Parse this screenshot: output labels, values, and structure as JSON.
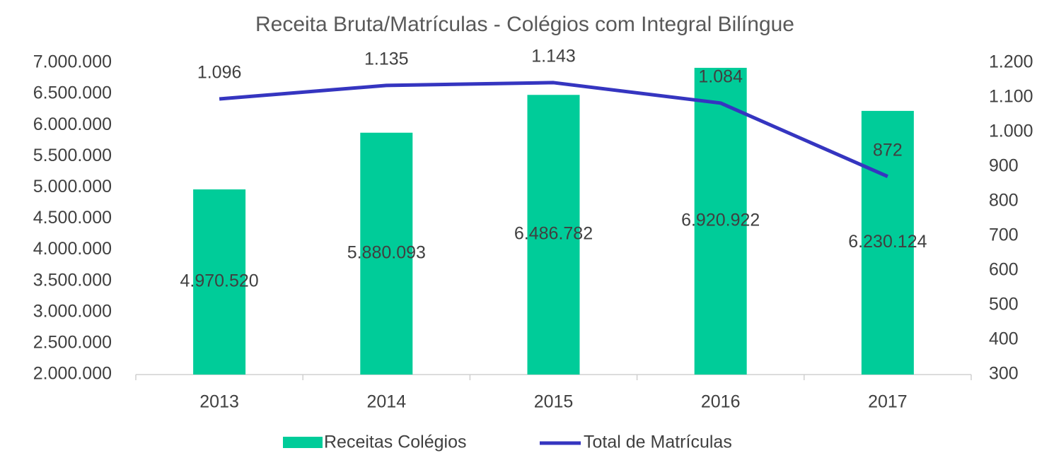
{
  "chart_data": {
    "type": "bar",
    "title": "Receita Bruta/Matrículas - Colégios com Integral Bilíngue",
    "categories": [
      "2013",
      "2014",
      "2015",
      "2016",
      "2017"
    ],
    "series": [
      {
        "name": "Receitas Colégios",
        "type": "bar",
        "color": "#00cc99",
        "values": [
          4970520,
          5880093,
          6486782,
          6920922,
          6230124
        ],
        "value_labels": [
          "4.970.520",
          "5.880.093",
          "6.486.782",
          "6.920.922",
          "6.230.124"
        ]
      },
      {
        "name": "Total de Matrículas",
        "type": "line",
        "axis": "y2",
        "color": "#3535c0",
        "values": [
          1096,
          1135,
          1143,
          1084,
          872
        ],
        "value_labels": [
          "1.096",
          "1.135",
          "1.143",
          "1.084",
          "872"
        ]
      }
    ],
    "ylim": [
      2000000,
      7000000
    ],
    "yticks": [
      {
        "value": 2000000,
        "label": "2.000.000"
      },
      {
        "value": 2500000,
        "label": "2.500.000"
      },
      {
        "value": 3000000,
        "label": "3.000.000"
      },
      {
        "value": 3500000,
        "label": "3.500.000"
      },
      {
        "value": 4000000,
        "label": "4.000.000"
      },
      {
        "value": 4500000,
        "label": "4.500.000"
      },
      {
        "value": 5000000,
        "label": "5.000.000"
      },
      {
        "value": 5500000,
        "label": "5.500.000"
      },
      {
        "value": 6000000,
        "label": "6.000.000"
      },
      {
        "value": 6500000,
        "label": "6.500.000"
      },
      {
        "value": 7000000,
        "label": "7.000.000"
      }
    ],
    "y2lim": [
      300,
      1200
    ],
    "y2ticks": [
      300,
      400,
      500,
      600,
      700,
      800,
      900,
      {
        "value": 1000,
        "label": "1.000"
      },
      {
        "value": 1100,
        "label": "1.100"
      },
      {
        "value": 1200,
        "label": "1.200"
      }
    ],
    "legend": "bottom"
  }
}
